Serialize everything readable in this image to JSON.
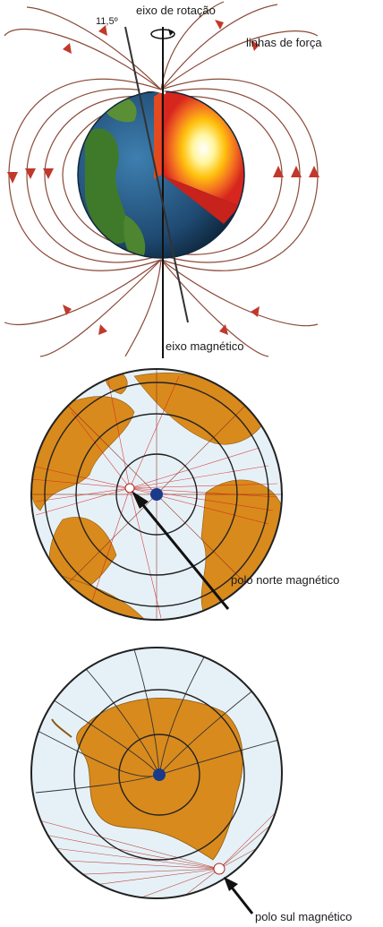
{
  "earth_figure": {
    "angle_label": "11,5º",
    "rotation_axis_label": "eixo de rotação",
    "field_lines_label": "linhas de força",
    "magnetic_axis_label": "eixo magnético"
  },
  "north_map": {
    "pole_label": "polo norte magnético"
  },
  "south_map": {
    "pole_label": "polo sul magnético"
  },
  "colors": {
    "field_line": "#8b4a3a",
    "arrow": "#c0392b",
    "ocean": "#e6f1f7",
    "land": "#d98a1c",
    "grid": "#333333",
    "pole_dot": "#1a3a8a"
  }
}
